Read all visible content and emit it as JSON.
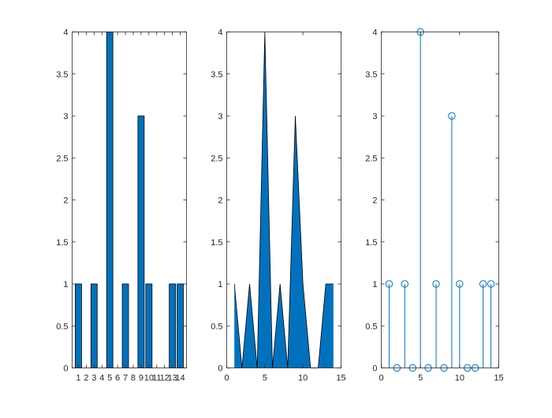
{
  "colors": {
    "face": "#0072BD",
    "edge": "#000000",
    "stem": "#0072BD",
    "axis": "#262626",
    "background": "#ffffff"
  },
  "chart_data": [
    {
      "type": "bar",
      "x": [
        1,
        2,
        3,
        4,
        5,
        6,
        7,
        8,
        9,
        10,
        11,
        12,
        13,
        14
      ],
      "values": [
        1,
        0,
        1,
        0,
        4,
        0,
        1,
        0,
        3,
        1,
        0,
        0,
        1,
        1
      ],
      "xlim": [
        0.2,
        14.8
      ],
      "ylim": [
        0,
        4
      ],
      "xticks": [
        "1",
        "2",
        "3",
        "4",
        "5",
        "6",
        "7",
        "8",
        "9",
        "10",
        "11",
        "12",
        "13",
        "14"
      ],
      "yticks": [
        "0",
        "0.5",
        "1",
        "1.5",
        "2",
        "2.5",
        "3",
        "3.5",
        "4"
      ],
      "grid": false
    },
    {
      "type": "area",
      "x": [
        1,
        2,
        3,
        4,
        5,
        6,
        7,
        8,
        9,
        10,
        11,
        12,
        13,
        14
      ],
      "values": [
        1,
        0,
        1,
        0,
        4,
        0,
        1,
        0,
        3,
        1,
        0,
        0,
        1,
        1
      ],
      "xlim": [
        0,
        15
      ],
      "ylim": [
        0,
        4
      ],
      "xticks": [
        "0",
        "5",
        "10",
        "15"
      ],
      "yticks": [
        "0",
        "0.5",
        "1",
        "1.5",
        "2",
        "2.5",
        "3",
        "3.5",
        "4"
      ],
      "grid": false
    },
    {
      "type": "stem",
      "x": [
        1,
        2,
        3,
        4,
        5,
        6,
        7,
        8,
        9,
        10,
        11,
        12,
        13,
        14
      ],
      "values": [
        1,
        0,
        1,
        0,
        4,
        0,
        1,
        0,
        3,
        1,
        0,
        0,
        1,
        1
      ],
      "xlim": [
        0,
        15
      ],
      "ylim": [
        0,
        4
      ],
      "xticks": [
        "0",
        "5",
        "10",
        "15"
      ],
      "yticks": [
        "0",
        "0.5",
        "1",
        "1.5",
        "2",
        "2.5",
        "3",
        "3.5",
        "4"
      ],
      "grid": false
    }
  ]
}
